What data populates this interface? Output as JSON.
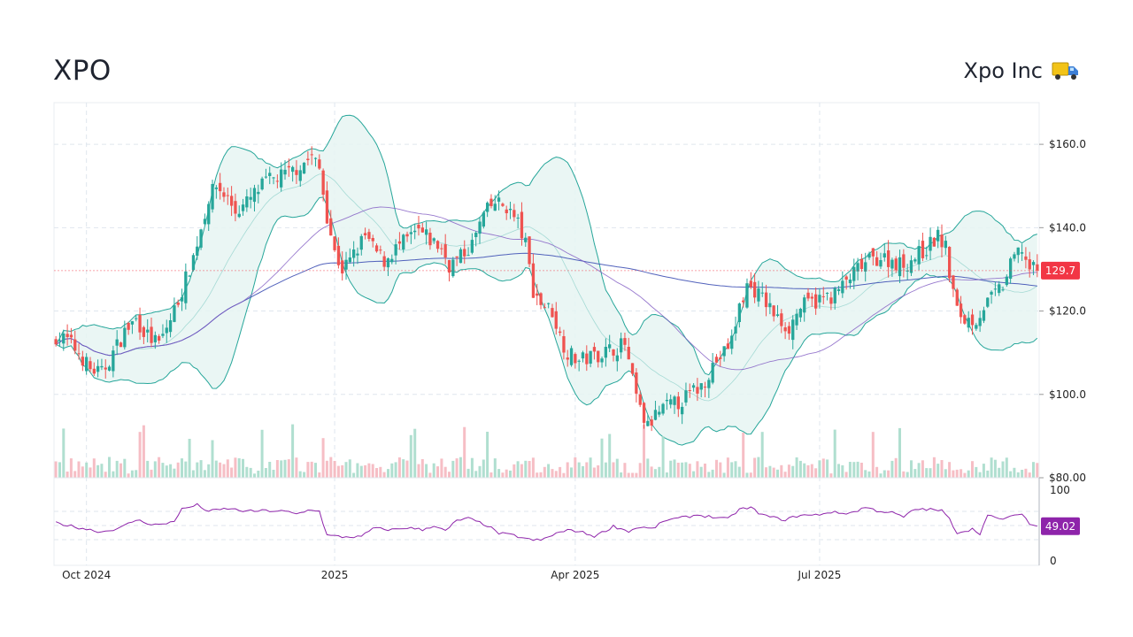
{
  "ticker": "XPO",
  "company_name": "Xpo Inc",
  "company_icon": "delivery-truck-icon",
  "colors": {
    "up": "#26a69a",
    "down": "#ef5350",
    "band_line": "#26a69a",
    "band_fill": "#e6f4f2",
    "sma200": "#3f51b5",
    "sma50": "#7e57c2",
    "rsi": "#8e24aa",
    "price_badge": "#f23645",
    "rsi_badge": "#8e24aa"
  },
  "chart_data": {
    "type": "candlestick",
    "y_axis": {
      "ticks": [
        "$160.0",
        "$140.0",
        "$120.0",
        "$100.0",
        "$80.00"
      ],
      "tick_values": [
        160,
        140,
        120,
        100,
        80
      ],
      "range": [
        80,
        170
      ]
    },
    "x_axis": {
      "ticks": [
        "Oct 2024",
        "2025",
        "Apr 2025",
        "Jul 2025"
      ],
      "tick_index": [
        8,
        73,
        136,
        200
      ],
      "n_bars": 258
    },
    "last_price": "129.7",
    "close_anchors": [
      [
        0,
        114
      ],
      [
        3,
        113
      ],
      [
        6,
        110
      ],
      [
        9,
        106
      ],
      [
        12,
        105
      ],
      [
        15,
        110
      ],
      [
        18,
        115
      ],
      [
        21,
        118
      ],
      [
        24,
        114
      ],
      [
        27,
        112
      ],
      [
        30,
        118
      ],
      [
        33,
        125
      ],
      [
        36,
        133
      ],
      [
        38,
        140
      ],
      [
        40,
        147
      ],
      [
        42,
        150
      ],
      [
        45,
        147
      ],
      [
        47,
        144
      ],
      [
        49,
        145
      ],
      [
        52,
        148
      ],
      [
        55,
        151
      ],
      [
        58,
        152
      ],
      [
        61,
        153
      ],
      [
        64,
        155
      ],
      [
        67,
        157
      ],
      [
        69,
        154
      ],
      [
        71,
        143
      ],
      [
        73,
        134
      ],
      [
        75,
        130
      ],
      [
        77,
        132
      ],
      [
        79,
        135
      ],
      [
        81,
        138
      ],
      [
        83,
        135
      ],
      [
        86,
        132
      ],
      [
        89,
        135
      ],
      [
        92,
        137
      ],
      [
        95,
        139
      ],
      [
        98,
        137
      ],
      [
        101,
        135
      ],
      [
        103,
        131
      ],
      [
        106,
        133
      ],
      [
        109,
        136
      ],
      [
        112,
        143
      ],
      [
        115,
        146
      ],
      [
        118,
        145
      ],
      [
        121,
        141
      ],
      [
        123,
        136
      ],
      [
        125,
        125
      ],
      [
        127,
        122
      ],
      [
        130,
        120
      ],
      [
        132,
        114
      ],
      [
        134,
        110
      ],
      [
        137,
        108
      ],
      [
        140,
        109
      ],
      [
        143,
        110
      ],
      [
        146,
        111
      ],
      [
        149,
        112
      ],
      [
        151,
        103
      ],
      [
        153,
        96
      ],
      [
        155,
        92
      ],
      [
        157,
        95
      ],
      [
        160,
        97
      ],
      [
        163,
        98
      ],
      [
        166,
        100
      ],
      [
        169,
        102
      ],
      [
        172,
        107
      ],
      [
        175,
        110
      ],
      [
        177,
        113
      ],
      [
        179,
        121
      ],
      [
        181,
        126
      ],
      [
        183,
        125
      ],
      [
        186,
        122
      ],
      [
        189,
        118
      ],
      [
        192,
        116
      ],
      [
        195,
        121
      ],
      [
        198,
        122
      ],
      [
        201,
        123
      ],
      [
        204,
        124
      ],
      [
        207,
        127
      ],
      [
        210,
        130
      ],
      [
        213,
        132
      ],
      [
        216,
        133
      ],
      [
        219,
        132
      ],
      [
        222,
        131
      ],
      [
        225,
        133
      ],
      [
        228,
        135
      ],
      [
        231,
        138
      ],
      [
        233,
        135
      ],
      [
        234,
        129
      ],
      [
        236,
        120
      ],
      [
        238,
        118
      ],
      [
        241,
        118
      ],
      [
        243,
        121
      ],
      [
        246,
        124
      ],
      [
        248,
        126
      ],
      [
        251,
        133
      ],
      [
        253,
        135
      ],
      [
        255,
        130
      ],
      [
        257,
        129.7
      ]
    ],
    "volume_range": [
      0,
      14000000
    ],
    "rsi": {
      "ticks": [
        "100",
        "0"
      ],
      "tick_values": [
        100,
        0
      ],
      "guides": [
        70,
        50,
        30
      ],
      "last": "49.02",
      "anchors": [
        [
          0,
          54
        ],
        [
          5,
          48
        ],
        [
          12,
          41
        ],
        [
          17,
          47
        ],
        [
          21,
          58
        ],
        [
          25,
          52
        ],
        [
          28,
          51
        ],
        [
          31,
          57
        ],
        [
          33,
          73
        ],
        [
          37,
          79
        ],
        [
          40,
          70
        ],
        [
          45,
          74
        ],
        [
          50,
          70
        ],
        [
          55,
          71
        ],
        [
          60,
          70
        ],
        [
          63,
          66
        ],
        [
          67,
          73
        ],
        [
          69,
          70
        ],
        [
          71,
          36
        ],
        [
          75,
          34
        ],
        [
          80,
          34
        ],
        [
          83,
          46
        ],
        [
          88,
          44
        ],
        [
          92,
          47
        ],
        [
          96,
          44
        ],
        [
          99,
          50
        ],
        [
          102,
          42
        ],
        [
          105,
          57
        ],
        [
          108,
          60
        ],
        [
          113,
          50
        ],
        [
          116,
          39
        ],
        [
          120,
          36
        ],
        [
          124,
          30
        ],
        [
          127,
          29
        ],
        [
          131,
          39
        ],
        [
          135,
          44
        ],
        [
          138,
          40
        ],
        [
          141,
          35
        ],
        [
          143,
          40
        ],
        [
          146,
          49
        ],
        [
          150,
          42
        ],
        [
          153,
          48
        ],
        [
          156,
          45
        ],
        [
          160,
          58
        ],
        [
          163,
          60
        ],
        [
          168,
          65
        ],
        [
          172,
          62
        ],
        [
          176,
          59
        ],
        [
          179,
          73
        ],
        [
          182,
          75
        ],
        [
          185,
          65
        ],
        [
          188,
          61
        ],
        [
          191,
          58
        ],
        [
          195,
          65
        ],
        [
          198,
          64
        ],
        [
          203,
          69
        ],
        [
          206,
          67
        ],
        [
          209,
          69
        ],
        [
          212,
          76
        ],
        [
          215,
          71
        ],
        [
          219,
          68
        ],
        [
          222,
          62
        ],
        [
          225,
          73
        ],
        [
          228,
          73
        ],
        [
          232,
          71
        ],
        [
          234,
          59
        ],
        [
          236,
          40
        ],
        [
          240,
          45
        ],
        [
          242,
          39
        ],
        [
          244,
          64
        ],
        [
          247,
          59
        ],
        [
          251,
          63
        ],
        [
          253,
          68
        ],
        [
          255,
          52
        ],
        [
          257,
          49.02
        ]
      ]
    }
  }
}
